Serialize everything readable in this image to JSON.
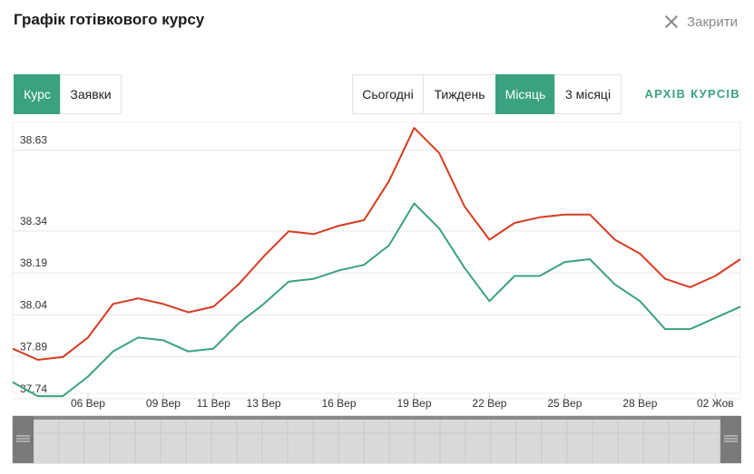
{
  "header": {
    "title": "Графік готівкового курсу",
    "close_label": "Закрити"
  },
  "mode_tabs": [
    {
      "label": "Курс",
      "active": true
    },
    {
      "label": "Заявки",
      "active": false
    }
  ],
  "period_tabs": [
    {
      "label": "Сьогодні",
      "active": false
    },
    {
      "label": "Тиждень",
      "active": false
    },
    {
      "label": "Місяць",
      "active": true
    },
    {
      "label": "3 місяці",
      "active": false
    }
  ],
  "archive_link": "АРХІВ КУРСІВ",
  "colors": {
    "accent": "#3aa181",
    "sell_line": "#d63c1f",
    "buy_line": "#3aa181"
  },
  "chart_data": {
    "type": "line",
    "title": "",
    "xlabel": "",
    "ylabel": "",
    "ylim": [
      37.72,
      38.69
    ],
    "y_ticks": [
      38.63,
      38.34,
      38.19,
      38.04,
      37.89,
      37.74
    ],
    "x_tick_labels": [
      "06 Вер",
      "09 Вер",
      "11 Вер",
      "13 Вер",
      "16 Вер",
      "19 Вер",
      "22 Вер",
      "25 Вер",
      "28 Вер",
      "02 Жов"
    ],
    "x_tick_positions": [
      3,
      6,
      8,
      10,
      13,
      16,
      19,
      22,
      25,
      28
    ],
    "x_max": 29,
    "grid": true,
    "legend": "none",
    "series": [
      {
        "color": "#d63c1f",
        "values": [
          37.88,
          37.84,
          37.85,
          37.92,
          38.04,
          38.06,
          38.04,
          38.01,
          38.03,
          38.11,
          38.21,
          38.3,
          38.29,
          38.32,
          38.34,
          38.48,
          38.67,
          38.58,
          38.39,
          38.27,
          38.33,
          38.35,
          38.36,
          38.36,
          38.27,
          38.22,
          38.13,
          38.1,
          38.14,
          38.2
        ]
      },
      {
        "color": "#3aa181",
        "values": [
          37.76,
          37.71,
          37.71,
          37.78,
          37.87,
          37.92,
          37.91,
          37.87,
          37.88,
          37.97,
          38.04,
          38.12,
          38.13,
          38.16,
          38.18,
          38.25,
          38.4,
          38.31,
          38.17,
          38.05,
          38.14,
          38.14,
          38.19,
          38.2,
          38.11,
          38.05,
          37.95,
          37.95,
          37.99,
          38.03
        ]
      }
    ]
  }
}
